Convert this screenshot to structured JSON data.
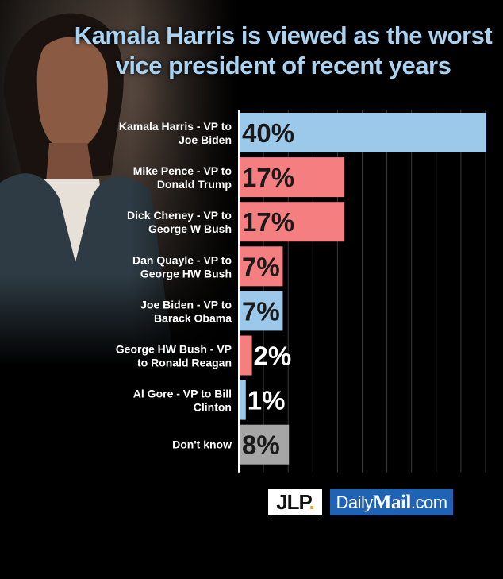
{
  "header": {
    "title_line1": "Kamala Harris is viewed as the worst",
    "title_line2": "vice president of recent years"
  },
  "logos": {
    "jlp_text": "JLP",
    "jlp_dot": ".",
    "dailymail_prefix": "Daily",
    "dailymail_brand": "Mail",
    "dailymail_suffix": ".com"
  },
  "colors": {
    "blue": "#9cc9e9",
    "red": "#f47e80",
    "gray": "#a6a6a6",
    "title": "#a9d3f1"
  },
  "chart_data": {
    "type": "bar",
    "orientation": "horizontal",
    "title": "Kamala Harris is viewed as the worst vice president of recent years",
    "xlim": [
      0,
      40
    ],
    "grid": true,
    "categories": [
      [
        "Kamala Harris - VP to",
        "Joe Biden"
      ],
      [
        "Mike Pence - VP to",
        "Donald Trump"
      ],
      [
        "Dick Cheney - VP to",
        "George W Bush"
      ],
      [
        "Dan Quayle - VP to",
        "George HW Bush"
      ],
      [
        "Joe Biden - VP to",
        "Barack Obama"
      ],
      [
        "George HW Bush - VP",
        "to Ronald Reagan"
      ],
      [
        "Al Gore - VP to Bill",
        "Clinton"
      ],
      [
        "Don't know"
      ]
    ],
    "values": [
      40,
      17,
      17,
      7,
      7,
      2,
      1,
      8
    ],
    "value_labels": [
      "40%",
      "17%",
      "17%",
      "7%",
      "7%",
      "2%",
      "1%",
      "8%"
    ],
    "bar_colors": [
      "blue",
      "red",
      "red",
      "red",
      "blue",
      "red",
      "blue",
      "gray"
    ]
  }
}
